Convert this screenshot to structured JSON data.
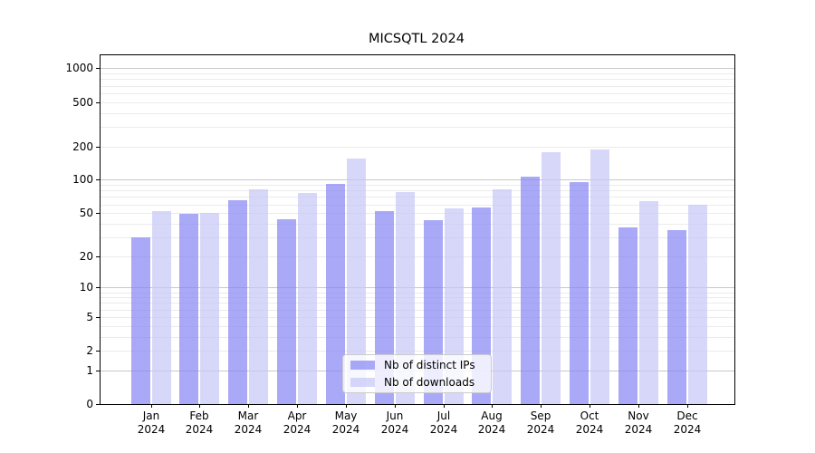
{
  "chart_data": {
    "type": "bar",
    "title": "MICSQTL 2024",
    "categories": [
      "Jan",
      "Feb",
      "Mar",
      "Apr",
      "May",
      "Jun",
      "Jul",
      "Aug",
      "Sep",
      "Oct",
      "Nov",
      "Dec"
    ],
    "year": "2024",
    "series": [
      {
        "name": "Nb of distinct IPs",
        "color": "#aaaaf8",
        "fill_rgba": "rgba(133,133,245,0.7)",
        "values": [
          30,
          49,
          66,
          44,
          92,
          52,
          43,
          56,
          106,
          95,
          37,
          35
        ]
      },
      {
        "name": "Nb of downloads",
        "color": "#d7d7fa",
        "fill_rgba": "rgba(198,198,248,0.7)",
        "values": [
          52,
          50,
          82,
          76,
          157,
          78,
          55,
          82,
          176,
          189,
          64,
          59
        ]
      }
    ],
    "yscale": "log1p",
    "yticks": [
      0,
      1,
      2,
      5,
      10,
      20,
      50,
      100,
      200,
      500,
      1000
    ],
    "ylim": [
      0,
      1290
    ],
    "xlabel": "",
    "ylabel": "",
    "grid": {
      "show": true,
      "major_color": "#c9c9c9",
      "minor_color": "#ebebeb",
      "major_lines_at": [
        1,
        10,
        100,
        1000
      ]
    },
    "legend": {
      "position": "lower-center",
      "background": "rgba(255,255,255,0.8)",
      "border_color": "#cccccc"
    },
    "spine_color": "#000000"
  }
}
